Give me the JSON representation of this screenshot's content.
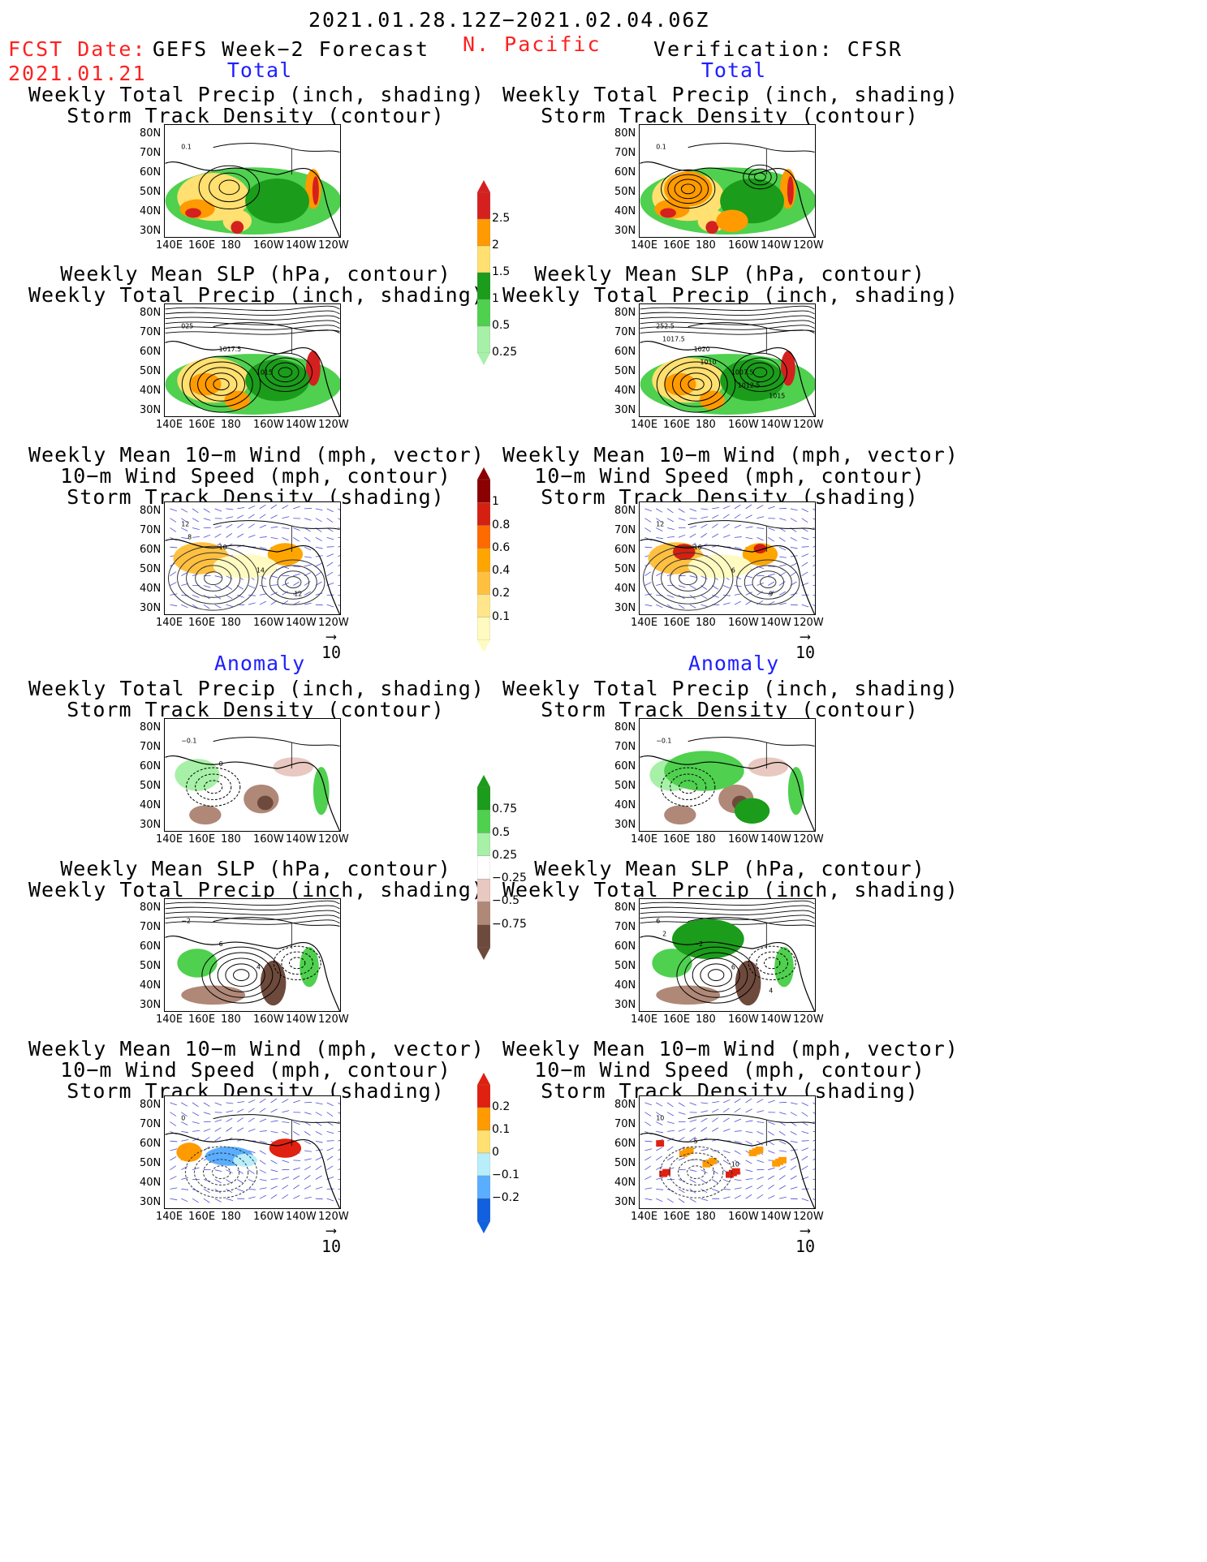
{
  "header": {
    "date_range": "2021.01.28.12Z−2021.02.04.06Z",
    "fcst_label": "FCST Date:",
    "fcst_date": "2021.01.21",
    "model_title": "GEFS Week−2 Forecast",
    "region": "N. Pacific",
    "verification": "Verification: CFSR"
  },
  "sections": {
    "total": "Total",
    "anomaly": "Anomaly"
  },
  "titles": {
    "precip_storm": [
      "Weekly Total Precip (inch, shading)",
      "Storm Track Density (contour)"
    ],
    "slp_precip": [
      "Weekly Mean SLP (hPa, contour)",
      "Weekly Total Precip (inch, shading)"
    ],
    "wind_storm": [
      "Weekly Mean 10−m Wind (mph, vector)",
      "10−m Wind Speed (mph, contour)",
      "Storm Track Density (shading)"
    ]
  },
  "axes": {
    "lat": [
      "80N",
      "70N",
      "60N",
      "50N",
      "40N",
      "30N"
    ],
    "lon": [
      "140E",
      "160E",
      "180",
      "160W",
      "140W",
      "120W"
    ]
  },
  "vector_ref": "10",
  "colorbars": {
    "precip_total": {
      "ticks": [
        "2.5",
        "2",
        "1.5",
        "1",
        "0.5",
        "0.25"
      ],
      "colors": [
        "#d52020",
        "#ff9a00",
        "#ffe070",
        "#1b9c1b",
        "#4fd04f",
        "#a7f0a7"
      ]
    },
    "storm_total": {
      "ticks": [
        "1",
        "0.8",
        "0.6",
        "0.4",
        "0.2",
        "0.1"
      ],
      "colors": [
        "#8b0000",
        "#d42010",
        "#ff6a00",
        "#ffa500",
        "#ffc040",
        "#ffe68a",
        "#fffac0"
      ]
    },
    "precip_anom": {
      "ticks": [
        "0.75",
        "0.5",
        "0.25",
        "−0.25",
        "−0.5",
        "−0.75"
      ],
      "colors": [
        "#1b9c1b",
        "#4fd04f",
        "#a7f0a7",
        "#ffffff",
        "#e8c8c0",
        "#b08878",
        "#6e4a3c"
      ]
    },
    "storm_anom": {
      "ticks": [
        "0.2",
        "0.1",
        "0",
        "−0.1",
        "−0.2"
      ],
      "colors": [
        "#e02010",
        "#ff9a00",
        "#ffe070",
        "#b8eefa",
        "#5aaeff",
        "#1060e0"
      ]
    }
  },
  "contour_labels": {
    "fcst_precip_total": [
      "0.1"
    ],
    "fcst_slp_total": [
      "025",
      "1017.5",
      "1015"
    ],
    "fcst_wind_total": [
      "12",
      "10",
      "14",
      "12",
      "8"
    ],
    "cfsr_precip_total": [
      "0.1"
    ],
    "cfsr_slp_total": [
      "252.5",
      "1020",
      "1007.5",
      "1015",
      "1017.5",
      "1010",
      "1012.5"
    ],
    "cfsr_wind_total": [
      "12",
      "16",
      "6",
      "9"
    ],
    "fcst_precip_anom": [
      "−0.1",
      "0"
    ],
    "fcst_slp_anom": [
      "−2",
      "6",
      "4"
    ],
    "fcst_wind_anom": [
      "0"
    ],
    "cfsr_precip_anom": [
      "−0.1"
    ],
    "cfsr_slp_anom": [
      "6",
      "−2",
      "6",
      "4",
      "2"
    ],
    "cfsr_wind_anom": [
      "10",
      "5",
      "10"
    ]
  }
}
